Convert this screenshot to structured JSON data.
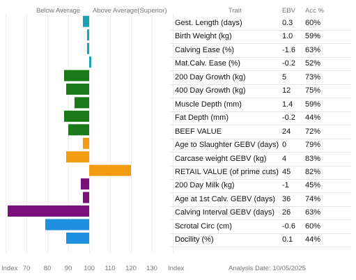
{
  "header": {
    "below_label": "Below Average",
    "above_label": "Above Average(Superior)",
    "trait_label": "Trait",
    "ebv_label": "EBV",
    "acc_label": "Acc %"
  },
  "footer": {
    "axis_label_left": "Index",
    "axis_label_right": "Index",
    "analysis_date": "Analysis Date: 10/05/2025"
  },
  "chart_data": {
    "type": "bar",
    "orientation": "horizontal",
    "baseline": 100,
    "xlim": [
      60,
      140
    ],
    "xticks": [
      70,
      80,
      90,
      100,
      110,
      120,
      130
    ],
    "categories": [
      "Gest. Length (days)",
      "Birth Weight (kg)",
      "Calving Ease (%)",
      "Mat.Calv. Ease (%)",
      "200 Day Growth (kg)",
      "400 Day Growth (kg)",
      "Muscle Depth (mm)",
      "Fat Depth (mm)",
      "BEEF VALUE",
      "Age to Slaughter GEBV (days)",
      "Carcase weight GEBV (kg)",
      "RETAIL VALUE (of prime cuts)",
      "200 Day Milk (kg)",
      "Age at 1st Calv. GEBV (days)",
      "Calving Interval GEBV (days)",
      "Scrotal Circ (cm)",
      "Docility (%)"
    ],
    "ebv": [
      "0.3",
      "1.0",
      "-1.6",
      "-0.2",
      "5",
      "12",
      "1.4",
      "-0.2",
      "24",
      "0",
      "4",
      "45",
      "-1",
      "36",
      "26",
      "-0.6",
      "0.1"
    ],
    "acc": [
      "60%",
      "59%",
      "63%",
      "52%",
      "73%",
      "75%",
      "59%",
      "44%",
      "72%",
      "79%",
      "83%",
      "82%",
      "45%",
      "74%",
      "63%",
      "60%",
      "44%"
    ],
    "index_values": [
      97,
      99,
      99,
      101,
      88,
      89,
      93,
      88,
      90,
      97,
      89,
      120,
      96,
      97,
      61,
      79,
      89
    ],
    "colors": [
      "#1aa3b3",
      "#1aa3b3",
      "#1aa3b3",
      "#1aa3b3",
      "#1a7a1a",
      "#1a7a1a",
      "#1a7a1a",
      "#1a7a1a",
      "#1a7a1a",
      "#f39c12",
      "#f39c12",
      "#f39c12",
      "#7b0f7b",
      "#7b0f7b",
      "#7b0f7b",
      "#1e90e0",
      "#1e90e0"
    ]
  }
}
